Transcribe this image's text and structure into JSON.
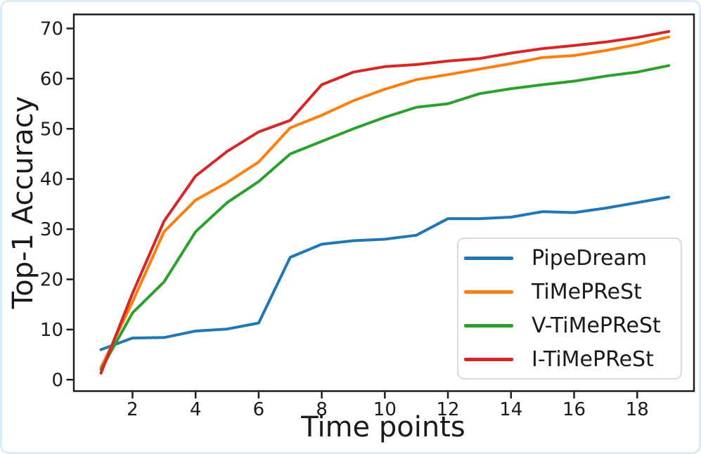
{
  "chart_data": {
    "type": "line",
    "title": "",
    "xlabel": "Time points",
    "ylabel": "Top-1 Accuracy",
    "grid": false,
    "legend_position": "lower right",
    "x_range": [
      0.14,
      19.8
    ],
    "y_range": [
      -2.27,
      72.8
    ],
    "xticks": [
      2,
      4,
      6,
      8,
      10,
      12,
      14,
      16,
      18
    ],
    "yticks": [
      0,
      10,
      20,
      30,
      40,
      50,
      60,
      70
    ],
    "x": [
      1,
      2,
      3,
      4,
      5,
      6,
      7,
      8,
      9,
      10,
      11,
      12,
      13,
      14,
      15,
      16,
      17,
      18,
      19
    ],
    "series": [
      {
        "name": "PipeDream",
        "color": "#1f77b4",
        "values": [
          6.0,
          8.3,
          8.4,
          9.7,
          10.1,
          11.3,
          24.4,
          27.0,
          27.7,
          28.0,
          28.8,
          32.1,
          32.1,
          32.4,
          33.5,
          33.3,
          34.2,
          35.3,
          36.4
        ]
      },
      {
        "name": "TiMePReSt",
        "color": "#ff7f0e",
        "values": [
          2.4,
          15.5,
          29.5,
          35.8,
          39.3,
          43.4,
          50.2,
          52.7,
          55.6,
          57.9,
          59.8,
          60.8,
          61.9,
          63.0,
          64.2,
          64.6,
          65.6,
          66.8,
          68.3
        ]
      },
      {
        "name": "V-TiMePReSt",
        "color": "#2ca02c",
        "values": [
          2.0,
          13.3,
          19.5,
          29.5,
          35.3,
          39.5,
          45.0,
          47.5,
          50.0,
          52.3,
          54.3,
          55.0,
          57.0,
          58.0,
          58.8,
          59.5,
          60.5,
          61.3,
          62.6
        ]
      },
      {
        "name": "I-TiMePReSt",
        "color": "#d62728",
        "values": [
          1.3,
          17.2,
          31.6,
          40.6,
          45.5,
          49.4,
          51.7,
          58.8,
          61.3,
          62.4,
          62.8,
          63.5,
          64.0,
          65.1,
          66.0,
          66.6,
          67.3,
          68.2,
          69.4
        ]
      }
    ]
  },
  "style": {
    "axis_color": "#1c1c1c",
    "tick_label_color": "#1a1a1a",
    "frame_border_color": "#d9ecf8",
    "legend_border_color": "#d9d9d9"
  }
}
